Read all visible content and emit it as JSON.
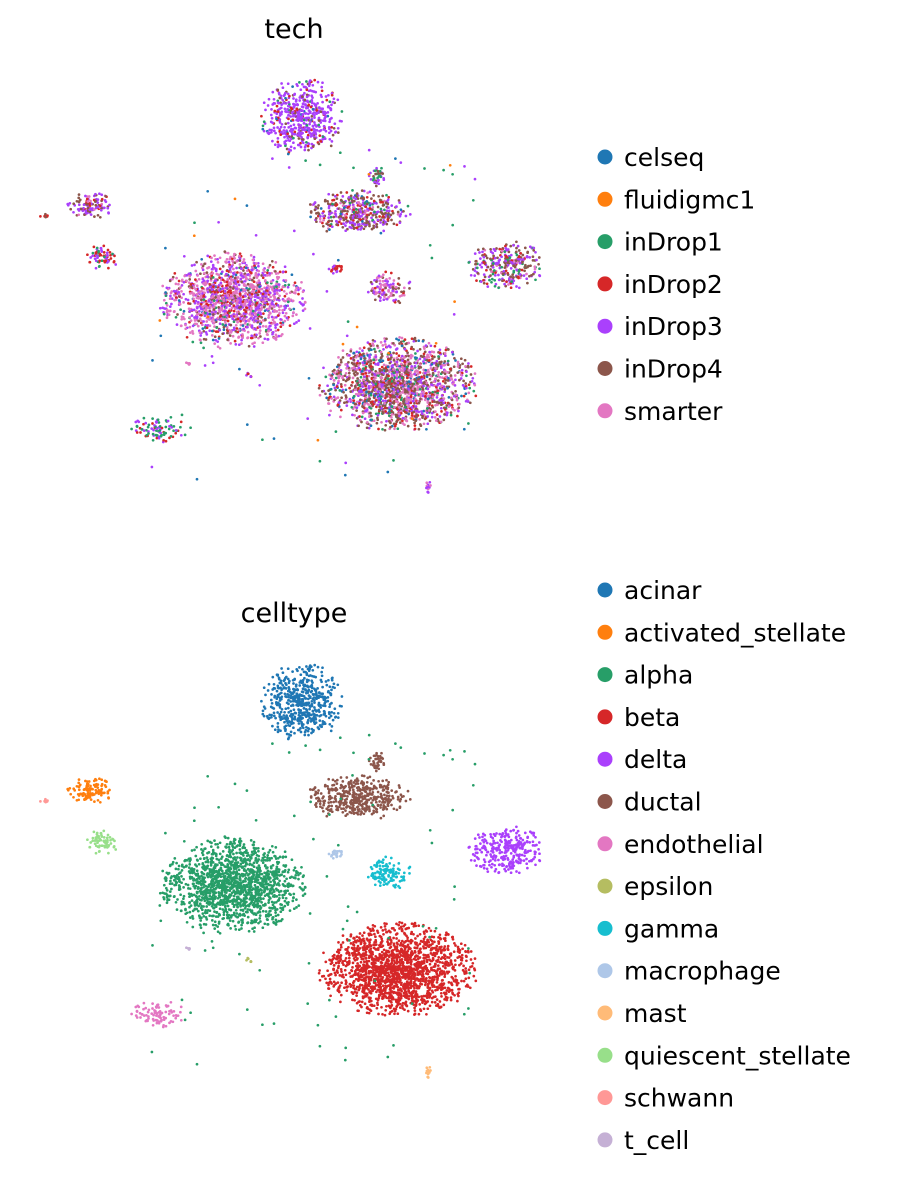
{
  "panels": [
    {
      "title": "tech",
      "legend": [
        {
          "label": "celseq",
          "color": "#1f77b4"
        },
        {
          "label": "fluidigmc1",
          "color": "#ff7f0e"
        },
        {
          "label": "inDrop1",
          "color": "#279e68"
        },
        {
          "label": "inDrop2",
          "color": "#d62728"
        },
        {
          "label": "inDrop3",
          "color": "#aa40fc"
        },
        {
          "label": "inDrop4",
          "color": "#8c564b"
        },
        {
          "label": "smarter",
          "color": "#e377c2"
        }
      ]
    },
    {
      "title": "celltype",
      "legend": [
        {
          "label": "acinar",
          "color": "#1f77b4"
        },
        {
          "label": "activated_stellate",
          "color": "#ff7f0e"
        },
        {
          "label": "alpha",
          "color": "#279e68"
        },
        {
          "label": "beta",
          "color": "#d62728"
        },
        {
          "label": "delta",
          "color": "#aa40fc"
        },
        {
          "label": "ductal",
          "color": "#8c564b"
        },
        {
          "label": "endothelial",
          "color": "#e377c2"
        },
        {
          "label": "epsilon",
          "color": "#b5bd61"
        },
        {
          "label": "gamma",
          "color": "#17becf"
        },
        {
          "label": "macrophage",
          "color": "#aec7e8"
        },
        {
          "label": "mast",
          "color": "#ffbb78"
        },
        {
          "label": "quiescent_stellate",
          "color": "#98df8a"
        },
        {
          "label": "schwann",
          "color": "#ff9896"
        },
        {
          "label": "t_cell",
          "color": "#c5b0d5"
        }
      ]
    }
  ],
  "chart_data": [
    {
      "type": "scatter",
      "title": "tech",
      "xlabel": "",
      "ylabel": "",
      "grid": false,
      "axes": "off",
      "legend_position": "right",
      "series": [
        {
          "name": "celseq",
          "color": "#1f77b4"
        },
        {
          "name": "fluidigmc1",
          "color": "#ff7f0e"
        },
        {
          "name": "inDrop1",
          "color": "#279e68"
        },
        {
          "name": "inDrop2",
          "color": "#d62728"
        },
        {
          "name": "inDrop3",
          "color": "#aa40fc"
        },
        {
          "name": "inDrop4",
          "color": "#8c564b"
        },
        {
          "name": "smarter",
          "color": "#e377c2"
        }
      ]
    },
    {
      "type": "scatter",
      "title": "celltype",
      "xlabel": "",
      "ylabel": "",
      "grid": false,
      "axes": "off",
      "legend_position": "right",
      "series": [
        {
          "name": "acinar",
          "color": "#1f77b4"
        },
        {
          "name": "activated_stellate",
          "color": "#ff7f0e"
        },
        {
          "name": "alpha",
          "color": "#279e68"
        },
        {
          "name": "beta",
          "color": "#d62728"
        },
        {
          "name": "delta",
          "color": "#aa40fc"
        },
        {
          "name": "ductal",
          "color": "#8c564b"
        },
        {
          "name": "endothelial",
          "color": "#e377c2"
        },
        {
          "name": "epsilon",
          "color": "#b5bd61"
        },
        {
          "name": "gamma",
          "color": "#17becf"
        },
        {
          "name": "macrophage",
          "color": "#aec7e8"
        },
        {
          "name": "mast",
          "color": "#ffbb78"
        },
        {
          "name": "quiescent_stellate",
          "color": "#98df8a"
        },
        {
          "name": "schwann",
          "color": "#ff9896"
        },
        {
          "name": "t_cell",
          "color": "#c5b0d5"
        }
      ]
    }
  ]
}
